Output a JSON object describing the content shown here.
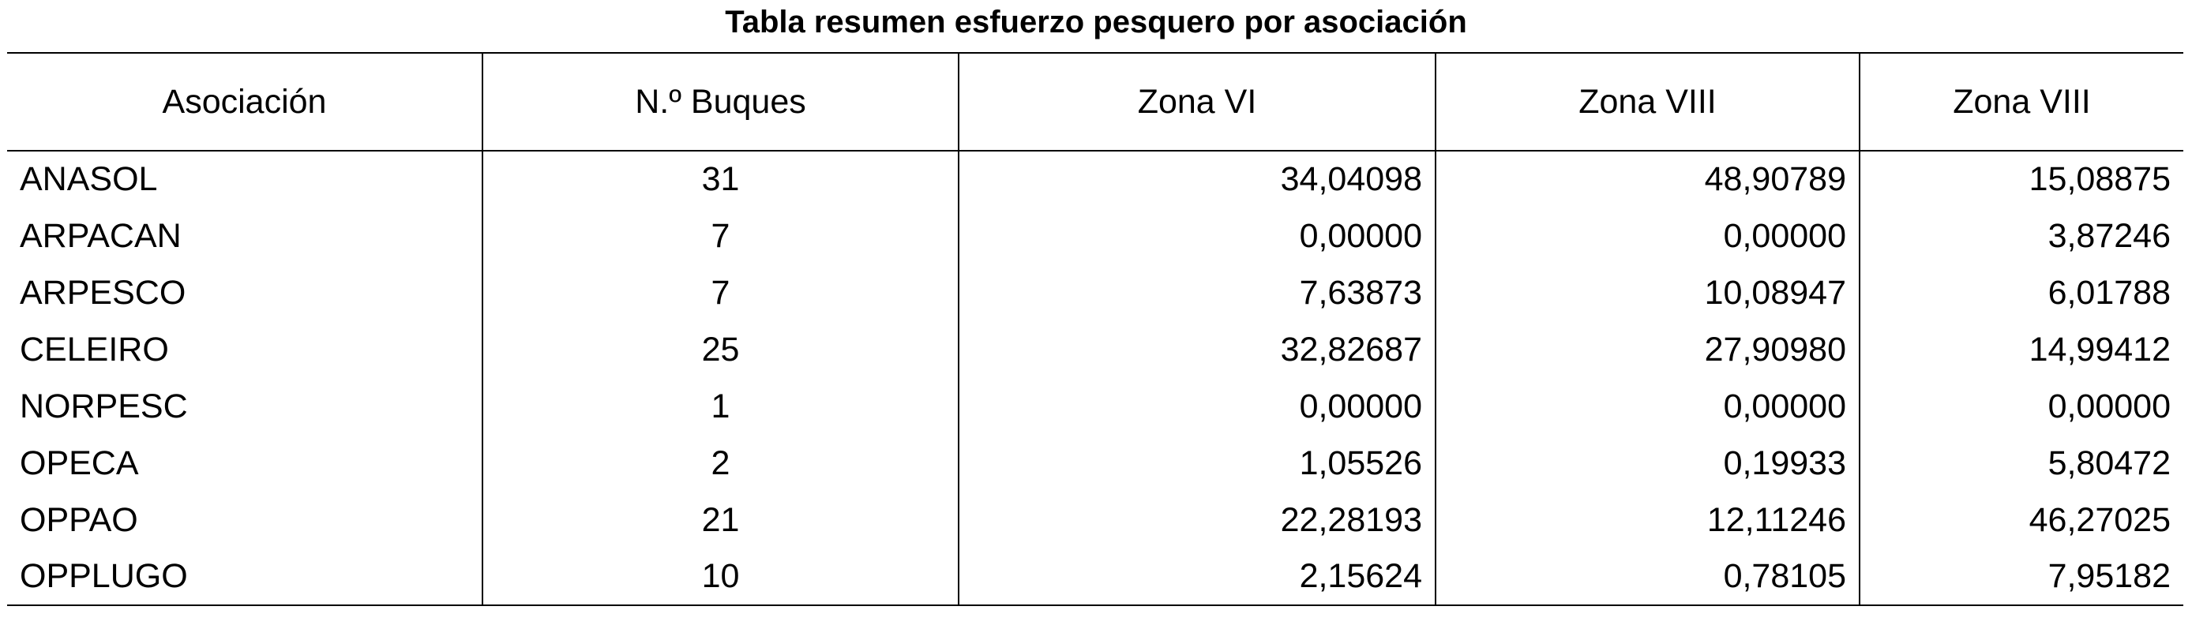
{
  "title": "Tabla resumen esfuerzo pesquero por asociación",
  "table": {
    "header": [
      "Asociación",
      "N.º Buques",
      "Zona VI",
      "Zona VIII",
      "Zona VIII"
    ],
    "rows": [
      [
        "ANASOL",
        "31",
        "34,04098",
        "48,90789",
        "15,08875"
      ],
      [
        "ARPACAN",
        "7",
        "0,00000",
        "0,00000",
        "3,87246"
      ],
      [
        "ARPESCO",
        "7",
        "7,63873",
        "10,08947",
        "6,01788"
      ],
      [
        "CELEIRO",
        "25",
        "32,82687",
        "27,90980",
        "14,99412"
      ],
      [
        "NORPESC",
        "1",
        "0,00000",
        "0,00000",
        "0,00000"
      ],
      [
        "OPECA",
        "2",
        "1,05526",
        "0,19933",
        "5,80472"
      ],
      [
        "OPPAO",
        "21",
        "22,28193",
        "12,11246",
        "46,27025"
      ],
      [
        "OPPLUGO",
        "10",
        "2,15624",
        "0,78105",
        "7,95182"
      ]
    ]
  }
}
